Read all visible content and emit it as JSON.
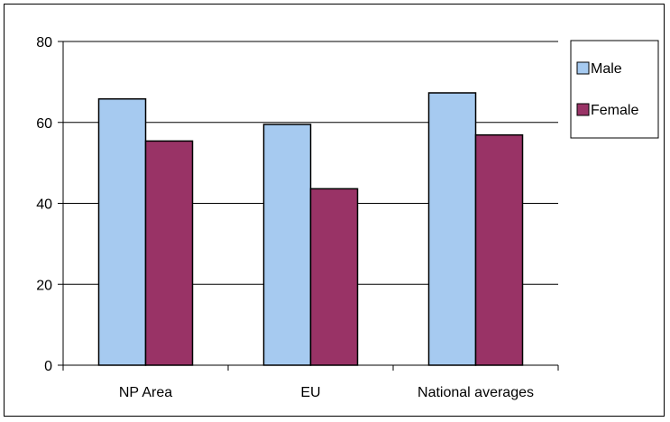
{
  "chart_data": {
    "type": "bar",
    "categories": [
      "NP Area",
      "EU",
      "National averages"
    ],
    "series": [
      {
        "name": "Male",
        "values": [
          65.8,
          59.5,
          67.3
        ],
        "color": "#a6caf0"
      },
      {
        "name": "Female",
        "values": [
          55.4,
          43.6,
          56.9
        ],
        "color": "#993366"
      }
    ],
    "ylim": [
      0,
      80
    ],
    "yticks": [
      0,
      20,
      40,
      60,
      80
    ],
    "grid": true,
    "legend": "right",
    "title": "",
    "xlabel": "",
    "ylabel": ""
  }
}
